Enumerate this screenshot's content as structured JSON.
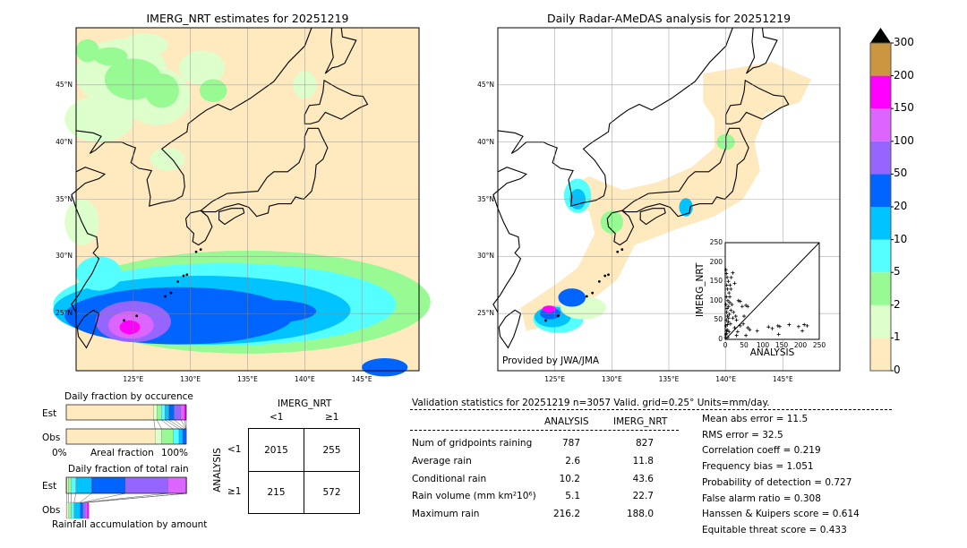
{
  "map_left": {
    "title": "IMERG_NRT estimates for 20251219",
    "lon_ticks": [
      "125°E",
      "130°E",
      "135°E",
      "140°E",
      "145°E"
    ],
    "lat_ticks": [
      "45°N",
      "40°N",
      "35°N",
      "30°N",
      "25°N"
    ],
    "background": "#ffeabf"
  },
  "map_right": {
    "title": "Daily Radar-AMeDAS analysis for 20251219",
    "lon_ticks": [
      "125°E",
      "130°E",
      "135°E",
      "140°E",
      "145°E"
    ],
    "lat_ticks": [
      "45°N",
      "40°N",
      "35°N",
      "30°N",
      "25°N"
    ],
    "credit": "Provided by JWA/JMA"
  },
  "colorbar": {
    "ticks": [
      "0",
      "1",
      "2",
      "5",
      "10",
      "20",
      "50",
      "100",
      "150",
      "200",
      "300"
    ],
    "colors": [
      "#ffeabf",
      "#dcffcc",
      "#98fa93",
      "#56ffff",
      "#00c3ff",
      "#0064ff",
      "#9664ff",
      "#dc64ff",
      "#ff00ff",
      "#cc9640"
    ],
    "extend_color": "#000000"
  },
  "scatter": {
    "xlabel": "ANALYSIS",
    "ylabel": "IMERG_NRT",
    "ticks": [
      "0",
      "50",
      "100",
      "150",
      "200",
      "250"
    ],
    "points": [
      [
        2,
        180
      ],
      [
        3,
        170
      ],
      [
        5,
        160
      ],
      [
        8,
        150
      ],
      [
        4,
        140
      ],
      [
        6,
        130
      ],
      [
        10,
        120
      ],
      [
        3,
        110
      ],
      [
        7,
        100
      ],
      [
        12,
        95
      ],
      [
        2,
        90
      ],
      [
        9,
        85
      ],
      [
        5,
        80
      ],
      [
        15,
        75
      ],
      [
        4,
        70
      ],
      [
        11,
        65
      ],
      [
        6,
        60
      ],
      [
        20,
        55
      ],
      [
        3,
        50
      ],
      [
        8,
        45
      ],
      [
        14,
        40
      ],
      [
        2,
        35
      ],
      [
        25,
        30
      ],
      [
        5,
        25
      ],
      [
        10,
        20
      ],
      [
        3,
        15
      ],
      [
        30,
        10
      ],
      [
        7,
        5
      ],
      [
        20,
        172
      ],
      [
        25,
        145
      ],
      [
        35,
        100
      ],
      [
        40,
        98
      ],
      [
        45,
        85
      ],
      [
        55,
        88
      ],
      [
        60,
        85
      ],
      [
        50,
        60
      ],
      [
        30,
        50
      ],
      [
        40,
        35
      ],
      [
        60,
        30
      ],
      [
        65,
        25
      ],
      [
        85,
        22
      ],
      [
        115,
        32
      ],
      [
        125,
        28
      ],
      [
        140,
        35
      ],
      [
        145,
        33
      ],
      [
        142,
        13
      ],
      [
        170,
        38
      ],
      [
        195,
        33
      ],
      [
        205,
        22
      ],
      [
        210,
        38
      ],
      [
        218,
        35
      ],
      [
        15,
        130
      ],
      [
        12,
        110
      ],
      [
        18,
        90
      ],
      [
        22,
        70
      ],
      [
        28,
        60
      ],
      [
        1,
        5
      ],
      [
        2,
        12
      ],
      [
        4,
        22
      ],
      [
        6,
        38
      ],
      [
        9,
        55
      ],
      [
        13,
        140
      ],
      [
        16,
        160
      ],
      [
        33,
        20
      ],
      [
        48,
        40
      ],
      [
        55,
        10
      ]
    ]
  },
  "fraction_occurrence": {
    "title": "Daily fraction by occurence",
    "rows": [
      "Est",
      "Obs"
    ],
    "xlabel": "Areal fraction",
    "xmin": "0%",
    "xmax": "100%",
    "est": [
      73,
      2.5,
      3.8,
      3,
      3.2,
      4.5,
      5.5,
      3,
      1.5
    ],
    "obs": [
      74,
      5.5,
      9.5,
      5,
      3,
      2.5,
      0.5,
      0,
      0
    ]
  },
  "fraction_rain": {
    "title": "Daily fraction of total rain",
    "rows": [
      "Est",
      "Obs"
    ],
    "xlabel": "Rainfall accumulation by amount",
    "est": [
      0.5,
      1.3,
      2.5,
      3.8,
      13,
      28.3,
      35.6,
      15.5,
      0
    ],
    "obs": [
      0.5,
      1.5,
      2,
      2.5,
      5,
      2.5,
      2,
      1.5,
      1.2
    ]
  },
  "contingency": {
    "col_title": "IMERG_NRT",
    "row_title": "ANALYSIS",
    "col_labels": [
      "<1",
      "≥1"
    ],
    "row_labels": [
      "<1",
      "≥1"
    ],
    "cells": [
      [
        "2015",
        "255"
      ],
      [
        "215",
        "572"
      ]
    ]
  },
  "stats": {
    "title": "Validation statistics for 20251219  n=3057 Valid. grid=0.25° Units=mm/day.",
    "col_headers": [
      "ANALYSIS",
      "IMERG_NRT"
    ],
    "rows": [
      {
        "label": "Num of gridpoints raining",
        "a": "787",
        "b": "827"
      },
      {
        "label": "Average rain",
        "a": "2.6",
        "b": "11.8"
      },
      {
        "label": "Conditional rain",
        "a": "10.2",
        "b": "43.6"
      },
      {
        "label": "Rain volume (mm km²10⁶)",
        "a": "5.1",
        "b": "22.7"
      },
      {
        "label": "Maximum rain",
        "a": "216.2",
        "b": "188.0"
      }
    ],
    "scores": [
      "Mean abs error =   11.5",
      "RMS error =   32.5",
      "Correlation coeff =  0.219",
      "Frequency bias =  1.051",
      "Probability of detection =  0.727",
      "False alarm ratio =  0.308",
      "Hanssen & Kuipers score =  0.614",
      "Equitable threat score =  0.433"
    ]
  }
}
